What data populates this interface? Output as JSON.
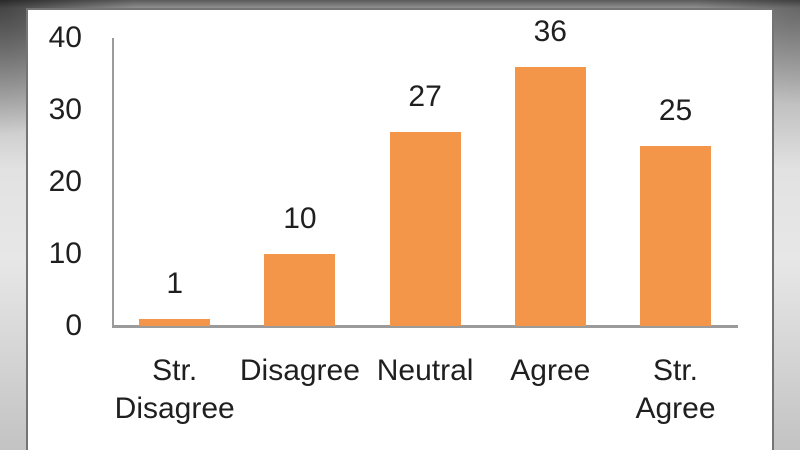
{
  "page": {
    "background": "#ffffff",
    "frame_border_color": "#747474"
  },
  "chart_data": {
    "type": "bar",
    "title": "",
    "categories": [
      "Str.\nDisagree",
      "Disagree",
      "Neutral",
      "Agree",
      "Str.\nAgree"
    ],
    "values": [
      1,
      10,
      27,
      36,
      25
    ],
    "data_labels": [
      "1",
      "10",
      "27",
      "36",
      "25"
    ],
    "xlabel": "",
    "ylabel": "",
    "ylim": [
      0,
      40
    ],
    "yticks": [
      0,
      10,
      20,
      30,
      40
    ],
    "grid": false,
    "legend": "none",
    "bar_color": "#F4964A",
    "axis_color": "#9B9B9B",
    "text_color": "#1F1F1F"
  }
}
